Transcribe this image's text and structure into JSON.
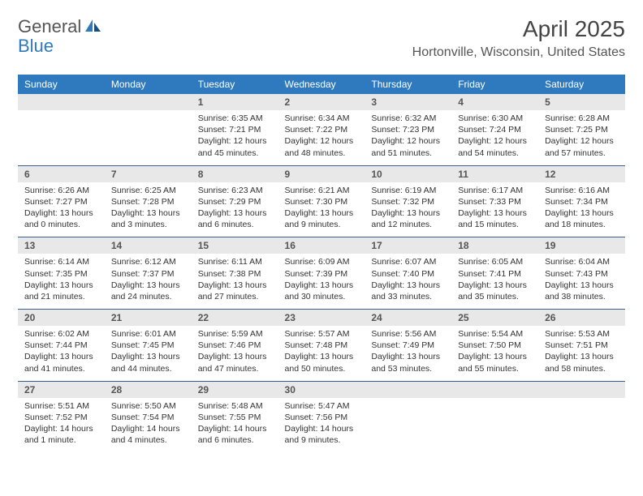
{
  "logo": {
    "text1": "General",
    "text2": "Blue"
  },
  "title": "April 2025",
  "location": "Hortonville, Wisconsin, United States",
  "dayHeaders": [
    "Sunday",
    "Monday",
    "Tuesday",
    "Wednesday",
    "Thursday",
    "Friday",
    "Saturday"
  ],
  "colors": {
    "headerBg": "#2f7abf",
    "headerText": "#ffffff",
    "dayNumBg": "#e8e8e8",
    "rowBorder": "#3a5f8a"
  },
  "weeks": [
    {
      "nums": [
        "",
        "",
        "1",
        "2",
        "3",
        "4",
        "5"
      ],
      "cells": [
        null,
        null,
        {
          "sunrise": "Sunrise: 6:35 AM",
          "sunset": "Sunset: 7:21 PM",
          "dl1": "Daylight: 12 hours",
          "dl2": "and 45 minutes."
        },
        {
          "sunrise": "Sunrise: 6:34 AM",
          "sunset": "Sunset: 7:22 PM",
          "dl1": "Daylight: 12 hours",
          "dl2": "and 48 minutes."
        },
        {
          "sunrise": "Sunrise: 6:32 AM",
          "sunset": "Sunset: 7:23 PM",
          "dl1": "Daylight: 12 hours",
          "dl2": "and 51 minutes."
        },
        {
          "sunrise": "Sunrise: 6:30 AM",
          "sunset": "Sunset: 7:24 PM",
          "dl1": "Daylight: 12 hours",
          "dl2": "and 54 minutes."
        },
        {
          "sunrise": "Sunrise: 6:28 AM",
          "sunset": "Sunset: 7:25 PM",
          "dl1": "Daylight: 12 hours",
          "dl2": "and 57 minutes."
        }
      ]
    },
    {
      "nums": [
        "6",
        "7",
        "8",
        "9",
        "10",
        "11",
        "12"
      ],
      "cells": [
        {
          "sunrise": "Sunrise: 6:26 AM",
          "sunset": "Sunset: 7:27 PM",
          "dl1": "Daylight: 13 hours",
          "dl2": "and 0 minutes."
        },
        {
          "sunrise": "Sunrise: 6:25 AM",
          "sunset": "Sunset: 7:28 PM",
          "dl1": "Daylight: 13 hours",
          "dl2": "and 3 minutes."
        },
        {
          "sunrise": "Sunrise: 6:23 AM",
          "sunset": "Sunset: 7:29 PM",
          "dl1": "Daylight: 13 hours",
          "dl2": "and 6 minutes."
        },
        {
          "sunrise": "Sunrise: 6:21 AM",
          "sunset": "Sunset: 7:30 PM",
          "dl1": "Daylight: 13 hours",
          "dl2": "and 9 minutes."
        },
        {
          "sunrise": "Sunrise: 6:19 AM",
          "sunset": "Sunset: 7:32 PM",
          "dl1": "Daylight: 13 hours",
          "dl2": "and 12 minutes."
        },
        {
          "sunrise": "Sunrise: 6:17 AM",
          "sunset": "Sunset: 7:33 PM",
          "dl1": "Daylight: 13 hours",
          "dl2": "and 15 minutes."
        },
        {
          "sunrise": "Sunrise: 6:16 AM",
          "sunset": "Sunset: 7:34 PM",
          "dl1": "Daylight: 13 hours",
          "dl2": "and 18 minutes."
        }
      ]
    },
    {
      "nums": [
        "13",
        "14",
        "15",
        "16",
        "17",
        "18",
        "19"
      ],
      "cells": [
        {
          "sunrise": "Sunrise: 6:14 AM",
          "sunset": "Sunset: 7:35 PM",
          "dl1": "Daylight: 13 hours",
          "dl2": "and 21 minutes."
        },
        {
          "sunrise": "Sunrise: 6:12 AM",
          "sunset": "Sunset: 7:37 PM",
          "dl1": "Daylight: 13 hours",
          "dl2": "and 24 minutes."
        },
        {
          "sunrise": "Sunrise: 6:11 AM",
          "sunset": "Sunset: 7:38 PM",
          "dl1": "Daylight: 13 hours",
          "dl2": "and 27 minutes."
        },
        {
          "sunrise": "Sunrise: 6:09 AM",
          "sunset": "Sunset: 7:39 PM",
          "dl1": "Daylight: 13 hours",
          "dl2": "and 30 minutes."
        },
        {
          "sunrise": "Sunrise: 6:07 AM",
          "sunset": "Sunset: 7:40 PM",
          "dl1": "Daylight: 13 hours",
          "dl2": "and 33 minutes."
        },
        {
          "sunrise": "Sunrise: 6:05 AM",
          "sunset": "Sunset: 7:41 PM",
          "dl1": "Daylight: 13 hours",
          "dl2": "and 35 minutes."
        },
        {
          "sunrise": "Sunrise: 6:04 AM",
          "sunset": "Sunset: 7:43 PM",
          "dl1": "Daylight: 13 hours",
          "dl2": "and 38 minutes."
        }
      ]
    },
    {
      "nums": [
        "20",
        "21",
        "22",
        "23",
        "24",
        "25",
        "26"
      ],
      "cells": [
        {
          "sunrise": "Sunrise: 6:02 AM",
          "sunset": "Sunset: 7:44 PM",
          "dl1": "Daylight: 13 hours",
          "dl2": "and 41 minutes."
        },
        {
          "sunrise": "Sunrise: 6:01 AM",
          "sunset": "Sunset: 7:45 PM",
          "dl1": "Daylight: 13 hours",
          "dl2": "and 44 minutes."
        },
        {
          "sunrise": "Sunrise: 5:59 AM",
          "sunset": "Sunset: 7:46 PM",
          "dl1": "Daylight: 13 hours",
          "dl2": "and 47 minutes."
        },
        {
          "sunrise": "Sunrise: 5:57 AM",
          "sunset": "Sunset: 7:48 PM",
          "dl1": "Daylight: 13 hours",
          "dl2": "and 50 minutes."
        },
        {
          "sunrise": "Sunrise: 5:56 AM",
          "sunset": "Sunset: 7:49 PM",
          "dl1": "Daylight: 13 hours",
          "dl2": "and 53 minutes."
        },
        {
          "sunrise": "Sunrise: 5:54 AM",
          "sunset": "Sunset: 7:50 PM",
          "dl1": "Daylight: 13 hours",
          "dl2": "and 55 minutes."
        },
        {
          "sunrise": "Sunrise: 5:53 AM",
          "sunset": "Sunset: 7:51 PM",
          "dl1": "Daylight: 13 hours",
          "dl2": "and 58 minutes."
        }
      ]
    },
    {
      "nums": [
        "27",
        "28",
        "29",
        "30",
        "",
        "",
        ""
      ],
      "cells": [
        {
          "sunrise": "Sunrise: 5:51 AM",
          "sunset": "Sunset: 7:52 PM",
          "dl1": "Daylight: 14 hours",
          "dl2": "and 1 minute."
        },
        {
          "sunrise": "Sunrise: 5:50 AM",
          "sunset": "Sunset: 7:54 PM",
          "dl1": "Daylight: 14 hours",
          "dl2": "and 4 minutes."
        },
        {
          "sunrise": "Sunrise: 5:48 AM",
          "sunset": "Sunset: 7:55 PM",
          "dl1": "Daylight: 14 hours",
          "dl2": "and 6 minutes."
        },
        {
          "sunrise": "Sunrise: 5:47 AM",
          "sunset": "Sunset: 7:56 PM",
          "dl1": "Daylight: 14 hours",
          "dl2": "and 9 minutes."
        },
        null,
        null,
        null
      ]
    }
  ]
}
